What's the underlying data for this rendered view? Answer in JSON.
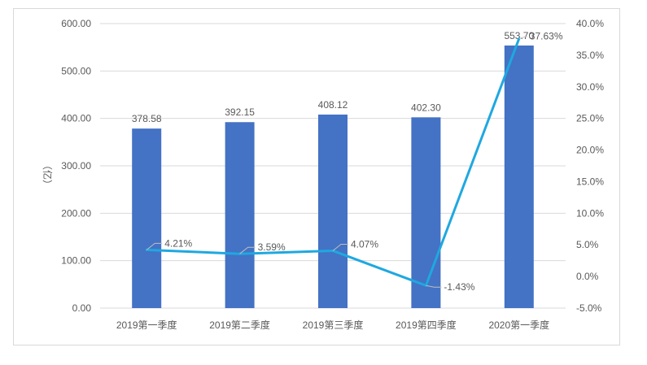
{
  "chart_data": {
    "type": "bar+line",
    "categories": [
      "2019第一季度",
      "2019第二季度",
      "2019第三季度",
      "2019第四季度",
      "2020第一季度"
    ],
    "series": [
      {
        "type": "bar",
        "axis": "left",
        "values": [
          378.58,
          392.15,
          408.12,
          402.3,
          553.7
        ],
        "labels": [
          "378.58",
          "392.15",
          "408.12",
          "402.30",
          "553.70"
        ],
        "color": "#4472c4"
      },
      {
        "type": "line",
        "axis": "right",
        "values": [
          4.21,
          3.59,
          4.07,
          -1.43,
          37.63
        ],
        "labels": [
          "4.21%",
          "3.59%",
          "4.07%",
          "-1.43%",
          "37.63%"
        ],
        "color": "#1fa8e0"
      }
    ],
    "ylabel": "（亿）",
    "ylim": [
      0,
      600
    ],
    "yticks": [
      "0.00",
      "100.00",
      "200.00",
      "300.00",
      "400.00",
      "500.00",
      "600.00"
    ],
    "y2lim": [
      -5,
      40
    ],
    "y2ticks": [
      "-5.0%",
      "0.0%",
      "5.0%",
      "10.0%",
      "15.0%",
      "20.0%",
      "25.0%",
      "30.0%",
      "35.0%",
      "40.0%"
    ],
    "grid": true,
    "legend": "none"
  }
}
